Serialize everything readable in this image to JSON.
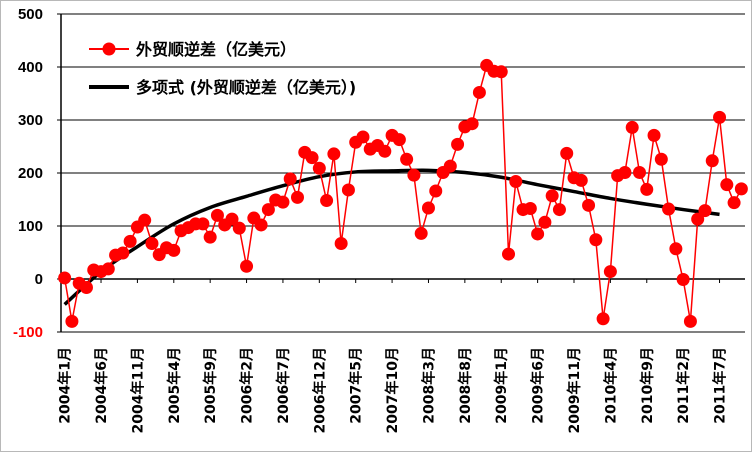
{
  "chart_data": {
    "type": "line",
    "title": "",
    "xlabel": "",
    "ylabel": "",
    "ylim": [
      -100,
      500
    ],
    "yticks": [
      -100,
      0,
      100,
      200,
      300,
      400,
      500
    ],
    "grid": "horizontal",
    "legend_position": "top-left",
    "x_tick_labels": [
      "2004年1月",
      "2004年6月",
      "2004年11月",
      "2005年4月",
      "2005年9月",
      "2006年2月",
      "2006年7月",
      "2006年12月",
      "2007年5月",
      "2007年10月",
      "2008年3月",
      "2008年8月",
      "2009年1月",
      "2009年6月",
      "2009年11月",
      "2010年4月",
      "2010年9月",
      "2011年2月",
      "2011年7月"
    ],
    "series": [
      {
        "name": "外贸顺逆差（亿美元）",
        "color": "#ff0000",
        "marker": "circle",
        "values": [
          2,
          -80,
          -8,
          -16,
          17,
          14,
          19,
          45,
          49,
          71,
          98,
          111,
          67,
          46,
          59,
          54,
          91,
          97,
          104,
          104,
          79,
          120,
          102,
          113,
          96,
          24,
          115,
          102,
          131,
          149,
          145,
          189,
          154,
          239,
          229,
          209,
          148,
          236,
          67,
          168,
          258,
          268,
          245,
          252,
          241,
          271,
          263,
          226,
          196,
          86,
          134,
          166,
          201,
          213,
          254,
          287,
          293,
          352,
          403,
          392,
          391,
          47,
          184,
          131,
          133,
          85,
          107,
          157,
          131,
          237,
          191,
          186,
          139,
          74,
          -75,
          14,
          195,
          201,
          286,
          201,
          169,
          271,
          226,
          132,
          57,
          -1,
          -80,
          113,
          129,
          223,
          305,
          178,
          144,
          170
        ]
      },
      {
        "name": "多项式 (外贸顺逆差（亿美元）)",
        "color": "#000000",
        "type": "trendline",
        "values": [
          -48,
          14,
          61,
          104,
          135,
          156,
          176,
          193,
          202,
          204,
          205,
          201,
          192,
          178,
          165,
          152,
          141,
          131,
          122
        ]
      }
    ]
  }
}
